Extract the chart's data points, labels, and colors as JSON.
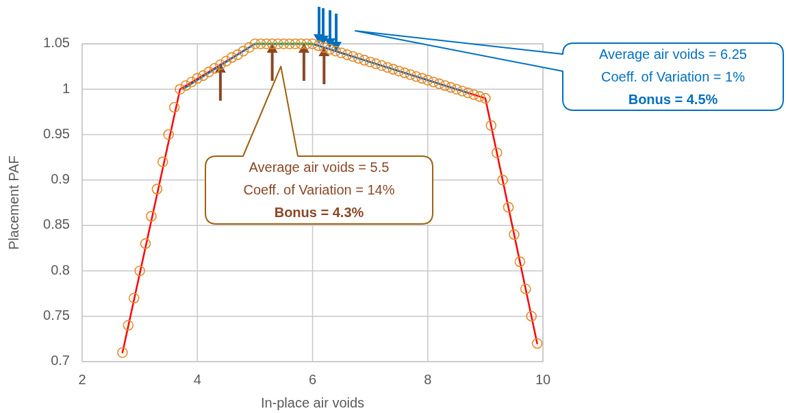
{
  "chart_data": {
    "type": "scatter",
    "xlabel": "In-place air voids",
    "ylabel": "Placement PAF",
    "xlim": [
      2,
      10
    ],
    "xticks": [
      2,
      4,
      6,
      8,
      10
    ],
    "ylim": [
      0.7,
      1.05
    ],
    "yticks": [
      0.7,
      0.75,
      0.8,
      0.85,
      0.9,
      0.95,
      1,
      1.05
    ],
    "grid": true,
    "series": [
      {
        "type": "line",
        "color": "#ff0000",
        "x": [
          2.7,
          3.7,
          5,
          6,
          9,
          9.9
        ],
        "values": [
          0.71,
          1.0,
          1.05,
          1.05,
          0.99,
          0.72
        ]
      },
      {
        "type": "line",
        "color": "#0070c0",
        "x": [
          3.75,
          5,
          6,
          8.7
        ],
        "values": [
          1.0,
          1.05,
          1.05,
          0.996
        ]
      },
      {
        "type": "line",
        "color": "#00b050",
        "x": [
          5,
          6
        ],
        "values": [
          1.05,
          1.05
        ]
      },
      {
        "color": "#e38c2c",
        "marker": "circle",
        "x": [
          2.7,
          2.8,
          2.9,
          3.0,
          3.1,
          3.2,
          3.3,
          3.4,
          3.5,
          3.6,
          3.7,
          3.8,
          3.9,
          4.0,
          4.1,
          4.2,
          4.3,
          4.4,
          4.5,
          4.6,
          4.7,
          4.8,
          4.9,
          5.0,
          5.1,
          5.2,
          5.3,
          5.4,
          5.5,
          5.6,
          5.7,
          5.8,
          5.9,
          6.0,
          6.1,
          6.2,
          6.3,
          6.4,
          6.5,
          6.6,
          6.7,
          6.8,
          6.9,
          7.0,
          7.1,
          7.2,
          7.3,
          7.4,
          7.5,
          7.6,
          7.7,
          7.8,
          7.9,
          8.0,
          8.1,
          8.2,
          8.3,
          8.4,
          8.5,
          8.6,
          8.7,
          8.8,
          8.9,
          9.0,
          9.1,
          9.2,
          9.3,
          9.4,
          9.5,
          9.6,
          9.7,
          9.8,
          9.9
        ],
        "values": [
          0.71,
          0.74,
          0.77,
          0.8,
          0.83,
          0.86,
          0.89,
          0.92,
          0.95,
          0.98,
          1.0,
          1.004,
          1.008,
          1.012,
          1.015,
          1.019,
          1.023,
          1.027,
          1.031,
          1.035,
          1.038,
          1.042,
          1.046,
          1.05,
          1.05,
          1.05,
          1.05,
          1.05,
          1.05,
          1.05,
          1.05,
          1.05,
          1.05,
          1.05,
          1.048,
          1.046,
          1.044,
          1.042,
          1.04,
          1.038,
          1.036,
          1.034,
          1.032,
          1.03,
          1.028,
          1.026,
          1.024,
          1.022,
          1.02,
          1.018,
          1.016,
          1.014,
          1.012,
          1.01,
          1.008,
          1.006,
          1.004,
          1.002,
          1.0,
          0.998,
          0.996,
          0.994,
          0.992,
          0.99,
          0.96,
          0.93,
          0.9,
          0.87,
          0.84,
          0.81,
          0.78,
          0.75,
          0.72
        ]
      }
    ],
    "annotations": [
      "Average air voids = 6.25",
      "Coeff. of Variation = 1%",
      "Bonus = 4.5%",
      "Average air voids = 5.5",
      "Coeff. of Variation = 14%",
      "Bonus = 4.3%"
    ]
  }
}
